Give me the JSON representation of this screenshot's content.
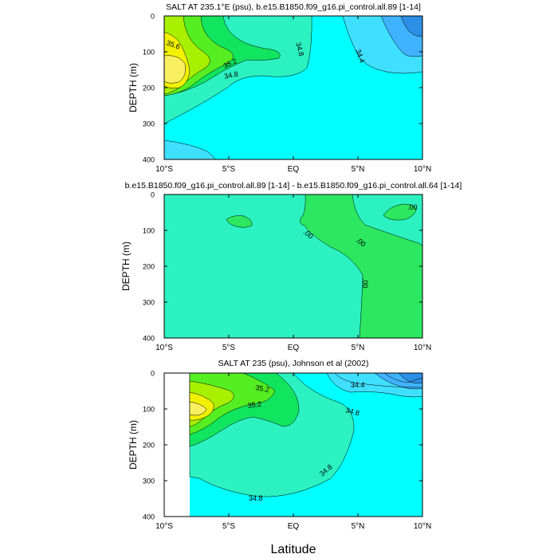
{
  "shared_xlabel": "Latitude",
  "colors": {
    "s34_0": "#2b8fe6",
    "s34_2": "#3fb3ff",
    "s34_4": "#3fe0ff",
    "s34_6": "#00ffff",
    "s34_8": "#2cf2c2",
    "s35_0": "#11e55f",
    "s35_2": "#55ee22",
    "s35_4": "#a8f000",
    "s35_6": "#f0f000",
    "s35_8": "#f8f060",
    "diff_pos": "#2ce860",
    "diff_neg": "#2cf2c2"
  },
  "chart_data": [
    {
      "type": "contour",
      "title": "SALT AT 235.1°E (psu), b.e15.B1850.f09_g16.pi_control.all.89 [1-14]",
      "ylabel": "DEPTH (m)",
      "x_ticks": [
        "10°S",
        "5°S",
        "EQ",
        "5°N",
        "10°N"
      ],
      "x_values": [
        -10,
        -5,
        0,
        5,
        10
      ],
      "y_ticks": [
        "0",
        "100",
        "200",
        "300",
        "400"
      ],
      "y_values": [
        0,
        100,
        200,
        300,
        400
      ],
      "xlim": [
        -10,
        10
      ],
      "ylim": [
        400,
        0
      ],
      "contour_labels": [
        "35.6",
        "35.2",
        "34.8",
        "34.8",
        "34.4"
      ]
    },
    {
      "type": "contour",
      "title": "b.e15.B1850.f09_g16.pi_control.all.89 [1-14] - b.e15.B1850.f09_g16.pi_control.all.64 [1-14]",
      "ylabel": "DEPTH (m)",
      "x_ticks": [
        "10°S",
        "5°S",
        "EQ",
        "5°N",
        "10°N"
      ],
      "x_values": [
        -10,
        -5,
        0,
        5,
        10
      ],
      "y_ticks": [
        "0",
        "100",
        "200",
        "300",
        "400"
      ],
      "y_values": [
        0,
        100,
        200,
        300,
        400
      ],
      "xlim": [
        -10,
        10
      ],
      "ylim": [
        400,
        0
      ],
      "contour_labels": [
        ".00",
        ".00",
        ".00",
        ".00"
      ]
    },
    {
      "type": "contour",
      "title": "SALT AT 235 (psu), Johnson et al (2002)",
      "ylabel": "DEPTH (m)",
      "x_ticks": [
        "10°S",
        "5°S",
        "EQ",
        "5°N",
        "10°N"
      ],
      "x_values": [
        -10,
        -5,
        0,
        5,
        10
      ],
      "y_ticks": [
        "0",
        "100",
        "200",
        "300",
        "400"
      ],
      "y_values": [
        0,
        100,
        200,
        300,
        400
      ],
      "xlim": [
        -10,
        10
      ],
      "ylim": [
        400,
        0
      ],
      "data_xlim": [
        -8,
        10
      ],
      "contour_labels": [
        "35.2",
        "35.2",
        "34.4",
        "34.8",
        "34.8",
        "34.8"
      ]
    }
  ]
}
